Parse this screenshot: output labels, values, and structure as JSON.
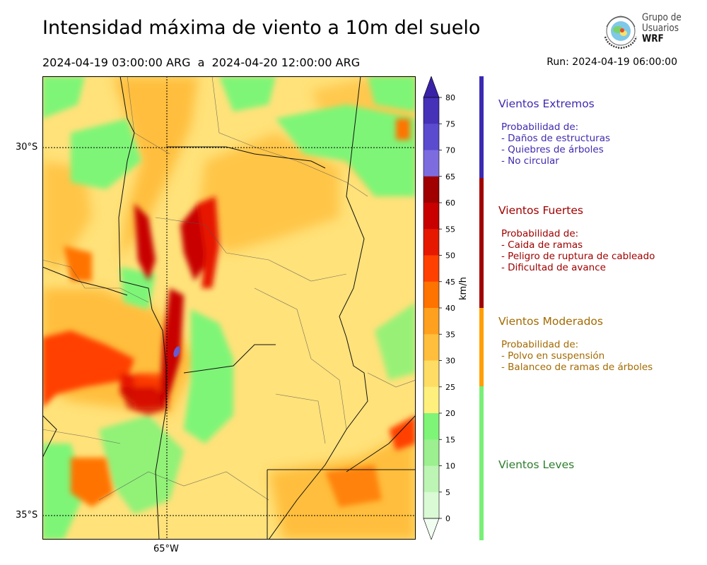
{
  "header": {
    "title": "Intensidad máxima de viento a 10m del suelo",
    "period": "2024-04-19 03:00:00 ARG  a  2024-04-20 12:00:00 ARG",
    "run": "Run: 2024-04-19 06:00:00"
  },
  "logo": {
    "line1": "Grupo de",
    "line2": "Usuarios",
    "line3": "WRF"
  },
  "map": {
    "lat_labels": [
      "30°S",
      "35°S"
    ],
    "lon_labels": [
      "65°W"
    ]
  },
  "colorbar": {
    "unit": "km/h",
    "ticks": [
      "0",
      "5",
      "10",
      "15",
      "20",
      "25",
      "30",
      "35",
      "40",
      "45",
      "50",
      "55",
      "60",
      "65",
      "70",
      "75",
      "80"
    ],
    "colors": [
      "#f2fdf2",
      "#d9fad5",
      "#bcf5b4",
      "#9cf08f",
      "#7ef577",
      "#fff07d",
      "#ffdc64",
      "#ffbe3c",
      "#ffa01e",
      "#ff7300",
      "#ff4000",
      "#e61900",
      "#c80000",
      "#a00000",
      "#7c6ce0",
      "#5a4bcf",
      "#4532b8"
    ],
    "top_color": "#3a22a8"
  },
  "categories": [
    {
      "title": "Vientos Extremos",
      "color": "#3f2ab0",
      "bar_color": "#3a2ab4",
      "lines": [
        "Probabilidad de:",
        "- Daños de estructuras",
        "- Quiebres de árboles",
        "- No circular"
      ]
    },
    {
      "title": "Vientos Fuertes",
      "color": "#a00000",
      "bar_color": "#a00000",
      "lines": [
        "Probabilidad de:",
        "- Caida de ramas",
        "- Peligro de ruptura de cableado",
        "- Dificultad de avance"
      ]
    },
    {
      "title": "Vientos Moderados",
      "color": "#a36a00",
      "bar_color": "#ff9f00",
      "lines": [
        "Probabilidad de:",
        "- Polvo en suspensión",
        "- Balanceo de ramas de árboles"
      ]
    },
    {
      "title": "Vientos Leves",
      "color": "#2d7d2d",
      "bar_color": "#78f078",
      "lines": []
    }
  ]
}
